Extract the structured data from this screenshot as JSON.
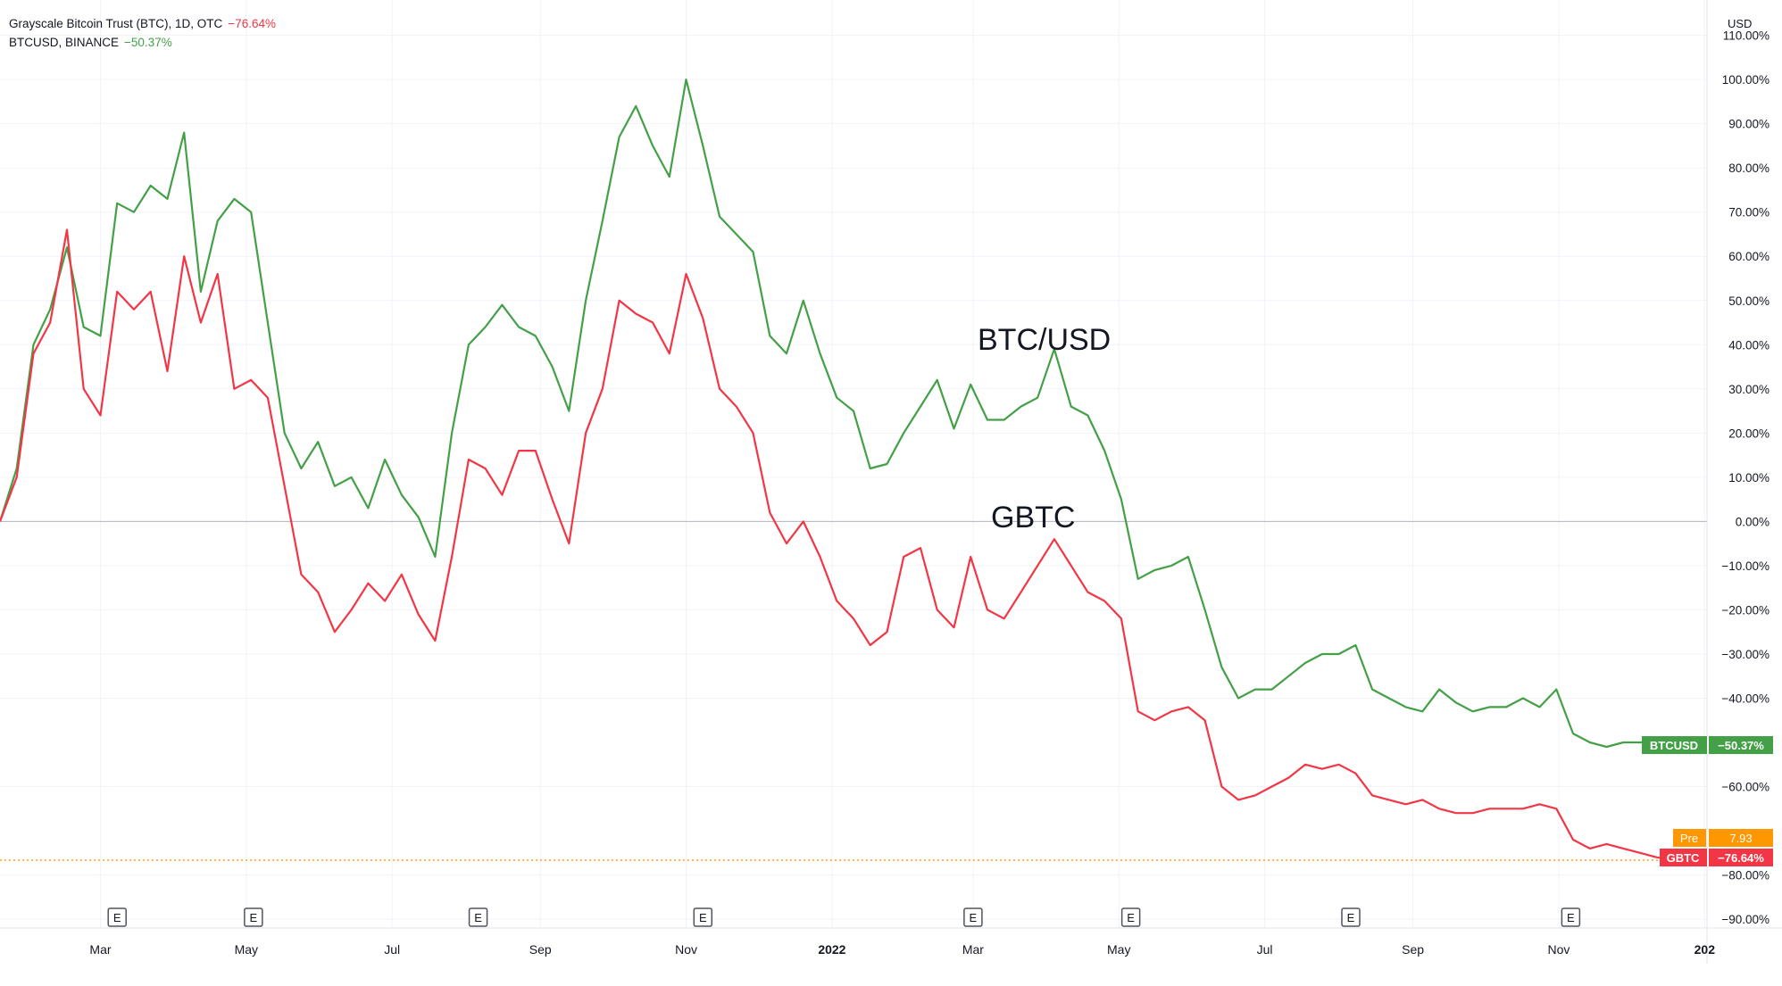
{
  "legend": {
    "gbtc_line": "Grayscale Bitcoin Trust (BTC), 1D, OTC",
    "gbtc_change": "−76.64%",
    "btc_line": "BTCUSD, BINANCE",
    "btc_change": "−50.37%"
  },
  "axis_currency": "USD",
  "annotations": {
    "btc": "BTC/USD",
    "gbtc": "GBTC"
  },
  "earnings_marker": "E",
  "price_tags": {
    "btcusd_label": "BTCUSD",
    "btcusd_value": "−50.37%",
    "pre_label": "Pre",
    "pre_value": "7.93",
    "gbtc_label": "GBTC",
    "gbtc_value": "−76.64%"
  },
  "colors": {
    "btc": "#43a047",
    "gbtc": "#f23645",
    "pre": "#ff9800",
    "zero_line": "#b2b5be",
    "grid": "#f0f3fa",
    "text": "#131722"
  },
  "chart_data": {
    "type": "line",
    "title": "",
    "y_unit": "%",
    "ylim": [
      -92,
      118
    ],
    "xlim": [
      "2021-01-18",
      "2023-01-02"
    ],
    "y_ticks": [
      "110.00%",
      "100.00%",
      "90.00%",
      "80.00%",
      "70.00%",
      "60.00%",
      "50.00%",
      "40.00%",
      "30.00%",
      "20.00%",
      "10.00%",
      "0.00%",
      "−10.00%",
      "−20.00%",
      "−30.00%",
      "−40.00%",
      "−60.00%",
      "−80.00%",
      "−90.00%"
    ],
    "y_tick_values": [
      110,
      100,
      90,
      80,
      70,
      60,
      50,
      40,
      30,
      20,
      10,
      0,
      -10,
      -20,
      -30,
      -40,
      -60,
      -80,
      -90
    ],
    "x_ticks": [
      "Mar",
      "May",
      "Jul",
      "Sep",
      "Nov",
      "2022",
      "Mar",
      "May",
      "Jul",
      "Sep",
      "Nov",
      "202"
    ],
    "x_tick_dates": [
      "2021-03-01",
      "2021-05-01",
      "2021-07-01",
      "2021-09-01",
      "2021-11-01",
      "2022-01-01",
      "2022-03-01",
      "2022-05-01",
      "2022-07-01",
      "2022-09-01",
      "2022-11-01",
      "2023-01-01"
    ],
    "earnings_dates": [
      "2021-03-08",
      "2021-05-04",
      "2021-08-06",
      "2021-11-08",
      "2022-03-01",
      "2022-05-06",
      "2022-08-06",
      "2022-11-06"
    ],
    "series": [
      {
        "name": "BTCUSD",
        "final_value": -50.37,
        "x": [
          "2021-01-18",
          "2021-01-25",
          "2021-02-01",
          "2021-02-08",
          "2021-02-15",
          "2021-02-22",
          "2021-03-01",
          "2021-03-08",
          "2021-03-15",
          "2021-03-22",
          "2021-03-29",
          "2021-04-05",
          "2021-04-12",
          "2021-04-19",
          "2021-04-26",
          "2021-05-03",
          "2021-05-10",
          "2021-05-17",
          "2021-05-24",
          "2021-05-31",
          "2021-06-07",
          "2021-06-14",
          "2021-06-21",
          "2021-06-28",
          "2021-07-05",
          "2021-07-12",
          "2021-07-19",
          "2021-07-26",
          "2021-08-02",
          "2021-08-09",
          "2021-08-16",
          "2021-08-23",
          "2021-08-30",
          "2021-09-06",
          "2021-09-13",
          "2021-09-20",
          "2021-09-27",
          "2021-10-04",
          "2021-10-11",
          "2021-10-18",
          "2021-10-25",
          "2021-11-01",
          "2021-11-08",
          "2021-11-15",
          "2021-11-22",
          "2021-11-29",
          "2021-12-06",
          "2021-12-13",
          "2021-12-20",
          "2021-12-27",
          "2022-01-03",
          "2022-01-10",
          "2022-01-17",
          "2022-01-24",
          "2022-01-31",
          "2022-02-07",
          "2022-02-14",
          "2022-02-21",
          "2022-02-28",
          "2022-03-07",
          "2022-03-14",
          "2022-03-21",
          "2022-03-28",
          "2022-04-04",
          "2022-04-11",
          "2022-04-18",
          "2022-04-25",
          "2022-05-02",
          "2022-05-09",
          "2022-05-16",
          "2022-05-23",
          "2022-05-30",
          "2022-06-06",
          "2022-06-13",
          "2022-06-20",
          "2022-06-27",
          "2022-07-04",
          "2022-07-11",
          "2022-07-18",
          "2022-07-25",
          "2022-08-01",
          "2022-08-08",
          "2022-08-15",
          "2022-08-22",
          "2022-08-29",
          "2022-09-05",
          "2022-09-12",
          "2022-09-19",
          "2022-09-26",
          "2022-10-03",
          "2022-10-10",
          "2022-10-17",
          "2022-10-24",
          "2022-10-31",
          "2022-11-07",
          "2022-11-14",
          "2022-11-21",
          "2022-11-28",
          "2022-12-05",
          "2022-12-12",
          "2022-12-19"
        ],
        "values": [
          0,
          12,
          40,
          48,
          62,
          44,
          42,
          72,
          70,
          76,
          73,
          88,
          52,
          68,
          73,
          70,
          45,
          20,
          12,
          18,
          8,
          10,
          3,
          14,
          6,
          1,
          -8,
          20,
          40,
          44,
          49,
          44,
          42,
          35,
          25,
          50,
          68,
          87,
          94,
          85,
          78,
          100,
          85,
          69,
          65,
          61,
          42,
          38,
          50,
          38,
          28,
          25,
          12,
          13,
          20,
          26,
          32,
          21,
          31,
          23,
          23,
          26,
          28,
          39,
          26,
          24,
          16,
          5,
          -13,
          -11,
          -10,
          -8,
          -20,
          -33,
          -40,
          -38,
          -38,
          -35,
          -32,
          -30,
          -30,
          -28,
          -38,
          -40,
          -42,
          -43,
          -38,
          -41,
          -43,
          -42,
          -42,
          -40,
          -42,
          -38,
          -48,
          -50,
          -51,
          -50,
          -50,
          -50,
          -50.37
        ]
      },
      {
        "name": "GBTC",
        "final_value": -76.64,
        "x": [
          "2021-01-18",
          "2021-01-25",
          "2021-02-01",
          "2021-02-08",
          "2021-02-15",
          "2021-02-22",
          "2021-03-01",
          "2021-03-08",
          "2021-03-15",
          "2021-03-22",
          "2021-03-29",
          "2021-04-05",
          "2021-04-12",
          "2021-04-19",
          "2021-04-26",
          "2021-05-03",
          "2021-05-10",
          "2021-05-17",
          "2021-05-24",
          "2021-05-31",
          "2021-06-07",
          "2021-06-14",
          "2021-06-21",
          "2021-06-28",
          "2021-07-05",
          "2021-07-12",
          "2021-07-19",
          "2021-07-26",
          "2021-08-02",
          "2021-08-09",
          "2021-08-16",
          "2021-08-23",
          "2021-08-30",
          "2021-09-06",
          "2021-09-13",
          "2021-09-20",
          "2021-09-27",
          "2021-10-04",
          "2021-10-11",
          "2021-10-18",
          "2021-10-25",
          "2021-11-01",
          "2021-11-08",
          "2021-11-15",
          "2021-11-22",
          "2021-11-29",
          "2021-12-06",
          "2021-12-13",
          "2021-12-20",
          "2021-12-27",
          "2022-01-03",
          "2022-01-10",
          "2022-01-17",
          "2022-01-24",
          "2022-01-31",
          "2022-02-07",
          "2022-02-14",
          "2022-02-21",
          "2022-02-28",
          "2022-03-07",
          "2022-03-14",
          "2022-03-21",
          "2022-03-28",
          "2022-04-04",
          "2022-04-11",
          "2022-04-18",
          "2022-04-25",
          "2022-05-02",
          "2022-05-09",
          "2022-05-16",
          "2022-05-23",
          "2022-05-30",
          "2022-06-06",
          "2022-06-13",
          "2022-06-20",
          "2022-06-27",
          "2022-07-04",
          "2022-07-11",
          "2022-07-18",
          "2022-07-25",
          "2022-08-01",
          "2022-08-08",
          "2022-08-15",
          "2022-08-22",
          "2022-08-29",
          "2022-09-05",
          "2022-09-12",
          "2022-09-19",
          "2022-09-26",
          "2022-10-03",
          "2022-10-10",
          "2022-10-17",
          "2022-10-24",
          "2022-10-31",
          "2022-11-07",
          "2022-11-14",
          "2022-11-21",
          "2022-11-28",
          "2022-12-05",
          "2022-12-12",
          "2022-12-19"
        ],
        "values": [
          0,
          10,
          38,
          45,
          66,
          30,
          24,
          52,
          48,
          52,
          34,
          60,
          45,
          56,
          30,
          32,
          28,
          8,
          -12,
          -16,
          -25,
          -20,
          -14,
          -18,
          -12,
          -21,
          -27,
          -8,
          14,
          12,
          6,
          16,
          16,
          5,
          -5,
          20,
          30,
          50,
          47,
          45,
          38,
          56,
          46,
          30,
          26,
          20,
          2,
          -5,
          0,
          -8,
          -18,
          -22,
          -28,
          -25,
          -8,
          -6,
          -20,
          -24,
          -8,
          -20,
          -22,
          -16,
          -10,
          -4,
          -10,
          -16,
          -18,
          -22,
          -43,
          -45,
          -43,
          -42,
          -45,
          -60,
          -63,
          -62,
          -60,
          -58,
          -55,
          -56,
          -55,
          -57,
          -62,
          -63,
          -64,
          -63,
          -65,
          -66,
          -66,
          -65,
          -65,
          -65,
          -64,
          -65,
          -72,
          -74,
          -73,
          -74,
          -75,
          -76,
          -76.64
        ]
      }
    ],
    "pre_market_value": 7.93,
    "grid": true,
    "legend": "top-left"
  }
}
